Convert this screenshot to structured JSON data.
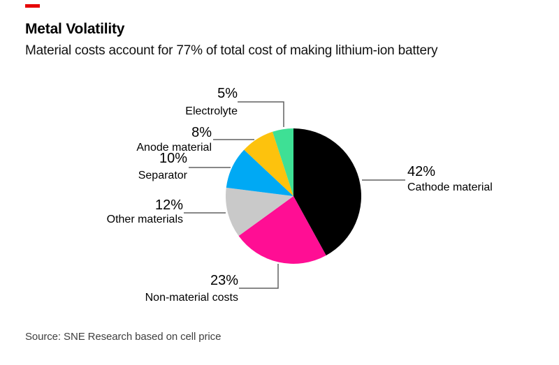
{
  "brand": {
    "accent_dash_color": "#e60000"
  },
  "chart_data": {
    "type": "pie",
    "title": "Metal Volatility",
    "subtitle": "Material costs account for 77% of total cost of making lithium-ion battery",
    "source": "Source: SNE Research based on cell price",
    "start_angle_deg": 0,
    "direction": "clockwise",
    "legend_position": "callout-labels",
    "slices": [
      {
        "label": "Cathode material",
        "value": 42,
        "pct_label": "42%",
        "color": "#000000"
      },
      {
        "label": "Non-material costs",
        "value": 23,
        "pct_label": "23%",
        "color": "#ff0e94"
      },
      {
        "label": "Other materials",
        "value": 12,
        "pct_label": "12%",
        "color": "#c9c9c9"
      },
      {
        "label": "Separator",
        "value": 10,
        "pct_label": "10%",
        "color": "#00a9f4"
      },
      {
        "label": "Anode material",
        "value": 8,
        "pct_label": "8%",
        "color": "#fdc20d"
      },
      {
        "label": "Electrolyte",
        "value": 5,
        "pct_label": "5%",
        "color": "#3ee095"
      }
    ]
  }
}
